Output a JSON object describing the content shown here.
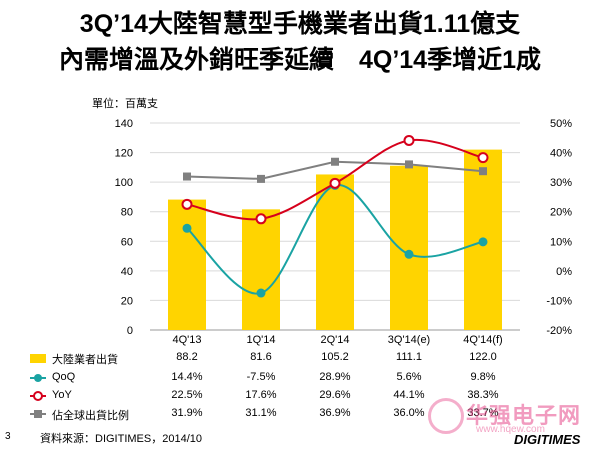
{
  "title_line1": "3Q’14大陸智慧型手機業者出貨1.11億支",
  "title_line2": "內需增溫及外銷旺季延續　4Q’14季增近1成",
  "unit_label": "單位：百萬支",
  "page_number": "3",
  "source": "資料來源：DIGITIMES，2014/10",
  "brand": "DIGITIMES",
  "watermark": "华强电子网",
  "watermark_url": "www.hqew.com",
  "colors": {
    "bar": "#FFD400",
    "qoq": "#1AA3A3",
    "yoy": "#D6001C",
    "share": "#808080",
    "grid": "#d9d9d9"
  },
  "chart_data": {
    "type": "bar",
    "categories": [
      "4Q'13",
      "1Q'14",
      "2Q'14",
      "3Q'14(e)",
      "4Q'14(f)"
    ],
    "y_left": {
      "ylim": [
        0,
        140
      ],
      "ticks": [
        "0",
        "20",
        "40",
        "60",
        "80",
        "100",
        "120",
        "140"
      ]
    },
    "y_right": {
      "ylim": [
        -20,
        50
      ],
      "ticks": [
        "-20%",
        "-10%",
        "0%",
        "10%",
        "20%",
        "30%",
        "40%",
        "50%"
      ]
    },
    "grid": true,
    "series": [
      {
        "name": "大陸業者出貨",
        "type": "bar",
        "axis": "left",
        "values": [
          88.2,
          81.6,
          105.2,
          111.1,
          122.0
        ],
        "labels": [
          "88.2",
          "81.6",
          "105.2",
          "111.1",
          "122.0"
        ]
      },
      {
        "name": "QoQ",
        "type": "line",
        "axis": "right",
        "values": [
          14.4,
          -7.5,
          28.9,
          5.6,
          9.8
        ],
        "labels": [
          "14.4%",
          "-7.5%",
          "28.9%",
          "5.6%",
          "9.8%"
        ]
      },
      {
        "name": "YoY",
        "type": "line",
        "axis": "right",
        "values": [
          22.5,
          17.6,
          29.6,
          44.1,
          38.3
        ],
        "labels": [
          "22.5%",
          "17.6%",
          "29.6%",
          "44.1%",
          "38.3%"
        ]
      },
      {
        "name": "佔全球出貨比例",
        "type": "line",
        "axis": "right",
        "values": [
          31.9,
          31.1,
          36.9,
          36.0,
          33.7
        ],
        "labels": [
          "31.9%",
          "31.1%",
          "36.9%",
          "36.0%",
          "33.7%"
        ]
      }
    ]
  }
}
